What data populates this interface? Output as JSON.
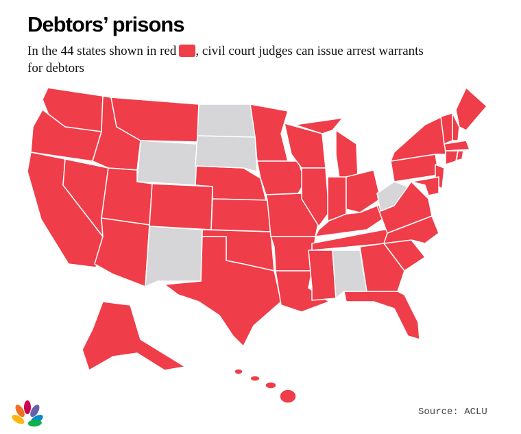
{
  "header": {
    "title": "Debtors’ prisons",
    "subtitle_before": "In the 44 states shown in red",
    "subtitle_after": ", civil court judges can issue arrest warrants for debtors"
  },
  "legend": {
    "red": "#ef3d49",
    "gray": "#d6d6d8"
  },
  "footer": {
    "source": "Source: ACLU"
  }
}
